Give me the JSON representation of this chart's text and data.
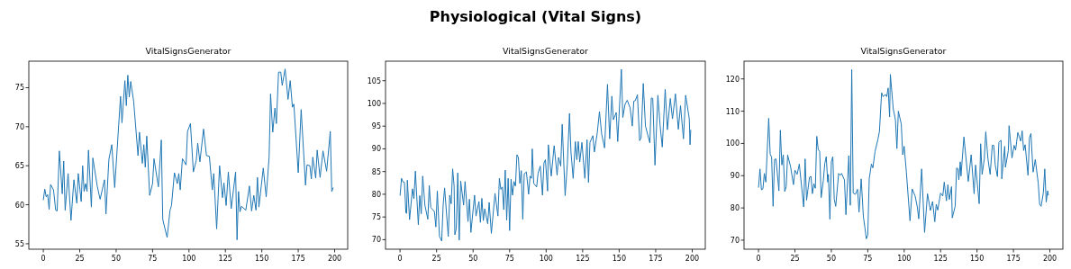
{
  "chart_data": [
    {
      "type": "line",
      "title": "VitalSignsGenerator",
      "annotations": [
        "Physiological (Vital Signs)"
      ],
      "xlim": [
        -9.95,
        208.95
      ],
      "ylim": [
        54.3,
        78.4
      ],
      "xticks": [
        0,
        25,
        50,
        75,
        100,
        125,
        150,
        175,
        200
      ],
      "yticks": [
        55,
        60,
        65,
        70,
        75
      ],
      "grid": false,
      "series": [
        {
          "color": "#1f77b4",
          "x": [
            0,
            1,
            2,
            3,
            4,
            5,
            7,
            8.5,
            9.5,
            11,
            13,
            14,
            15,
            17,
            19,
            21,
            23,
            24,
            26,
            27,
            28,
            29,
            30,
            31,
            33,
            34,
            37,
            39,
            42,
            43,
            45,
            47,
            49,
            53,
            54,
            56,
            57,
            58,
            59,
            60,
            62,
            65,
            66,
            68,
            69,
            70,
            71,
            73,
            75,
            76,
            79,
            81,
            82,
            85,
            87,
            88,
            90,
            92,
            93,
            94,
            95.5,
            98,
            99,
            101,
            103,
            105,
            106,
            107.5,
            110,
            112,
            114,
            116,
            117,
            119,
            121,
            123,
            124,
            125.5,
            127,
            129,
            132,
            133,
            134,
            135,
            136,
            139,
            141.5,
            143,
            144.5,
            146,
            147,
            148,
            151,
            153,
            155,
            156,
            157.5,
            159,
            160,
            161.5,
            163,
            164,
            166,
            168,
            169.5,
            171,
            172,
            175,
            177,
            180,
            181,
            183,
            184,
            185,
            187,
            188,
            190,
            192,
            194.5,
            197,
            198,
            199
          ],
          "values": [
            60.6,
            62.0,
            61.0,
            61.3,
            59.4,
            62.6,
            61.9,
            59.3,
            59.2,
            66.9,
            61.4,
            65.6,
            59.3,
            64.0,
            58.0,
            63.2,
            60.2,
            64.0,
            60.4,
            65.0,
            61.7,
            62.7,
            61.7,
            67.0,
            59.7,
            66.0,
            62.4,
            60.7,
            63.2,
            58.8,
            65.8,
            67.7,
            62.2,
            73.9,
            70.5,
            75.9,
            72.7,
            76.6,
            73.8,
            75.8,
            73.3,
            66.3,
            69.3,
            65.3,
            67.7,
            64.8,
            68.8,
            61.2,
            62.7,
            65.9,
            62.3,
            68.3,
            58.1,
            55.8,
            59.3,
            59.9,
            64.1,
            62.7,
            64.0,
            61.9,
            65.9,
            65.1,
            69.4,
            70.4,
            64.2,
            65.7,
            67.9,
            65.5,
            69.7,
            66.3,
            66.2,
            61.9,
            64.0,
            56.9,
            65.0,
            60.9,
            62.8,
            59.9,
            64.2,
            59.5,
            64.2,
            55.5,
            61.7,
            59.1,
            59.8,
            59.3,
            62.4,
            59.2,
            61.2,
            59.3,
            63.5,
            59.7,
            64.7,
            61.0,
            66.1,
            74.2,
            69.3,
            72.4,
            70.4,
            77.0,
            77.0,
            75.3,
            77.4,
            73.5,
            75.9,
            72.5,
            72.9,
            64.1,
            72.2,
            62.5,
            65.1,
            65.0,
            63.3,
            66.1,
            63.4,
            67.0,
            63.5,
            66.9,
            64.3,
            69.4,
            61.7,
            62.2
          ]
        }
      ]
    },
    {
      "type": "line",
      "title": "VitalSignsGenerator",
      "xlim": [
        -9.95,
        208.95
      ],
      "ylim": [
        67.9,
        109.3
      ],
      "xticks": [
        0,
        25,
        50,
        75,
        100,
        125,
        150,
        175,
        200
      ],
      "yticks": [
        70,
        75,
        80,
        85,
        90,
        95,
        100,
        105
      ],
      "grid": false,
      "series": [
        {
          "color": "#1f77b4",
          "x": [
            0,
            1,
            2,
            3,
            4,
            4.5,
            5,
            6.5,
            8.5,
            9.5,
            10.5,
            12.5,
            13.5,
            14.5,
            15.5,
            17,
            19,
            20,
            21,
            23.5,
            24.5,
            25.5,
            27,
            28.5,
            29.5,
            30.5,
            33,
            34,
            35,
            36,
            37,
            37.5,
            38.5,
            39.5,
            40.5,
            41.5,
            43.5,
            44.5,
            46.5,
            47.5,
            48.5,
            51,
            52,
            54,
            55,
            56,
            57,
            58,
            60,
            61,
            62.5,
            65,
            67,
            68,
            69,
            70,
            71,
            72,
            73,
            74,
            75,
            76,
            77,
            78,
            79,
            80,
            81,
            82,
            83,
            84,
            85,
            86.5,
            88,
            89,
            90,
            90.5,
            91.5,
            93.5,
            94.5,
            96,
            97.5,
            98.5,
            99.5,
            101,
            101.5,
            103.5,
            105.5,
            107.5,
            108.5,
            110,
            111,
            113,
            114.5,
            116,
            117,
            118.5,
            120,
            121,
            122,
            123,
            124.5,
            126.5,
            128,
            129,
            130,
            132,
            133,
            135,
            136.5,
            138,
            140,
            142,
            143.5,
            145,
            146,
            148,
            149,
            151.5,
            152.5,
            154,
            155.5,
            157.5,
            159,
            160,
            161,
            162.5,
            164,
            165,
            166.5,
            168,
            171,
            172,
            173,
            174.5,
            176.5,
            178,
            179.5,
            181.5,
            183,
            185,
            186.5,
            188.5,
            190.5,
            192,
            194,
            195.5,
            198,
            198.5,
            199
          ],
          "values": [
            79.7,
            83.5,
            82.7,
            82.6,
            75.9,
            75.8,
            83.1,
            74.4,
            81.2,
            79.0,
            85.1,
            73.3,
            79.7,
            75.7,
            84.0,
            77.6,
            74.5,
            81.9,
            77.1,
            76.2,
            72.8,
            80.7,
            70.7,
            69.7,
            77.6,
            81.4,
            70.7,
            79.8,
            77.9,
            85.6,
            81.8,
            71.1,
            72.4,
            84.7,
            69.9,
            82.9,
            77.6,
            82.8,
            74.0,
            78.9,
            71.6,
            79.8,
            75.2,
            78.4,
            73.8,
            79.1,
            74.2,
            76.8,
            73.5,
            78.2,
            71.4,
            80.2,
            75.2,
            83.5,
            81.1,
            81.6,
            76.6,
            85.3,
            74.3,
            83.5,
            72.0,
            83.3,
            79.8,
            82.8,
            81.8,
            88.7,
            88.1,
            82.4,
            85.2,
            74.5,
            84.5,
            84.9,
            80.0,
            84.0,
            83.5,
            90.0,
            82.4,
            81.6,
            84.7,
            86.2,
            79.8,
            86.9,
            87.6,
            80.7,
            90.9,
            84.0,
            90.7,
            84.2,
            88.1,
            86.2,
            95.4,
            79.7,
            86.6,
            97.8,
            89.3,
            83.5,
            91.6,
            87.6,
            91.6,
            87.1,
            91.4,
            83.5,
            92.0,
            82.6,
            91.4,
            92.9,
            89.3,
            93.5,
            98.2,
            93.3,
            90.2,
            104.2,
            92.2,
            101.6,
            96.4,
            98.0,
            91.6,
            107.5,
            96.9,
            99.8,
            100.7,
            99.0,
            95.0,
            100.5,
            100.6,
            101.9,
            91.8,
            92.4,
            104.4,
            95.0,
            91.3,
            101.2,
            101.1,
            86.4,
            101.8,
            95.2,
            90.4,
            103.1,
            94.2,
            101.1,
            96.6,
            102.1,
            94.3,
            99.5,
            92.2,
            101.8,
            96.6,
            90.9,
            94.2
          ]
        }
      ]
    },
    {
      "type": "line",
      "title": "VitalSignsGenerator",
      "xlim": [
        -9.95,
        208.95
      ],
      "ylim": [
        67.2,
        125.5
      ],
      "xticks": [
        0,
        25,
        50,
        75,
        100,
        125,
        150,
        175,
        200
      ],
      "yticks": [
        70,
        80,
        90,
        100,
        110,
        120
      ],
      "grid": false,
      "series": [
        {
          "color": "#1f77b4",
          "x": [
            0,
            1,
            2,
            3,
            4,
            5,
            7,
            8,
            9,
            10,
            11,
            12,
            14,
            15,
            16,
            17,
            18,
            19,
            20,
            22,
            24,
            25,
            26.5,
            28,
            31,
            32,
            33,
            35,
            36,
            37,
            38,
            39,
            40,
            41,
            42,
            43,
            44.5,
            45.5,
            46.5,
            47.5,
            48,
            49,
            50,
            51,
            52,
            53,
            55,
            56,
            57,
            59,
            60,
            62,
            63,
            64,
            65,
            66.5,
            68,
            69,
            70.5,
            72,
            73,
            74,
            75,
            76,
            77.5,
            78.5,
            80,
            82,
            83,
            84.5,
            85.5,
            87,
            88,
            89,
            90,
            90.5,
            92.5,
            94,
            95,
            96,
            98,
            99,
            100,
            101.5,
            104,
            105.5,
            107.5,
            109,
            110,
            112,
            114,
            116,
            118,
            119.5,
            121,
            122,
            123,
            125,
            126.5,
            127.5,
            129,
            130,
            131,
            132.5,
            133,
            135,
            136,
            137,
            137.5,
            138.5,
            139,
            141,
            144,
            146,
            148,
            149,
            151.5,
            152.5,
            153.5,
            155,
            156,
            157.5,
            159,
            160.5,
            161.5,
            162.5,
            164,
            165,
            166.5,
            167,
            169,
            169.5,
            171.5,
            172,
            174,
            175.5,
            176.5,
            178,
            180,
            181,
            182,
            183,
            185,
            186,
            187,
            188.5,
            190,
            192,
            193,
            194,
            195.5,
            196.5,
            197.5,
            198.5,
            199
          ],
          "values": [
            86.3,
            92.1,
            85.6,
            85.9,
            90.7,
            88.0,
            107.8,
            96.7,
            95.7,
            80.5,
            95.0,
            95.2,
            85.3,
            104.1,
            93.3,
            96.5,
            85.1,
            86.6,
            96.4,
            92.8,
            87.2,
            91.7,
            90.4,
            93.6,
            80.3,
            95.2,
            82.4,
            89.5,
            89.8,
            84.4,
            87.5,
            86.1,
            102.2,
            98.1,
            97.5,
            83.2,
            88.5,
            93.8,
            95.9,
            88.0,
            90.4,
            76.5,
            94.3,
            95.9,
            82.7,
            80.5,
            90.7,
            90.1,
            90.7,
            88.7,
            77.9,
            96.2,
            80.8,
            122.9,
            84.6,
            84.2,
            85.8,
            78.7,
            89.0,
            77.2,
            74.0,
            70.4,
            71.6,
            89.0,
            93.6,
            92.4,
            97.5,
            101.3,
            103.7,
            115.7,
            114.5,
            115.2,
            114.5,
            117.2,
            108.2,
            121.4,
            110.7,
            107.3,
            98.4,
            110.0,
            106.0,
            96.5,
            99.1,
            91.1,
            76.0,
            85.9,
            83.7,
            80.3,
            76.6,
            92.1,
            72.4,
            84.4,
            79.2,
            82.0,
            75.7,
            81.1,
            79.3,
            84.6,
            83.7,
            88.0,
            82.2,
            87.2,
            82.6,
            86.6,
            76.9,
            80.5,
            92.4,
            92.1,
            88.7,
            94.3,
            89.9,
            102.0,
            88.2,
            96.5,
            84.4,
            93.3,
            81.3,
            99.9,
            90.4,
            95.2,
            103.6,
            95.2,
            90.4,
            99.4,
            99.4,
            93.3,
            89.7,
            100.3,
            101.0,
            89.0,
            99.1,
            92.6,
            97.8,
            105.5,
            95.5,
            99.4,
            97.9,
            103.4,
            100.7,
            103.9,
            97.8,
            99.6,
            90.1,
            101.7,
            103.1,
            91.1,
            95.0,
            87.8,
            81.1,
            80.5,
            84.6,
            92.1,
            81.8,
            85.3,
            83.9
          ]
        }
      ]
    }
  ]
}
